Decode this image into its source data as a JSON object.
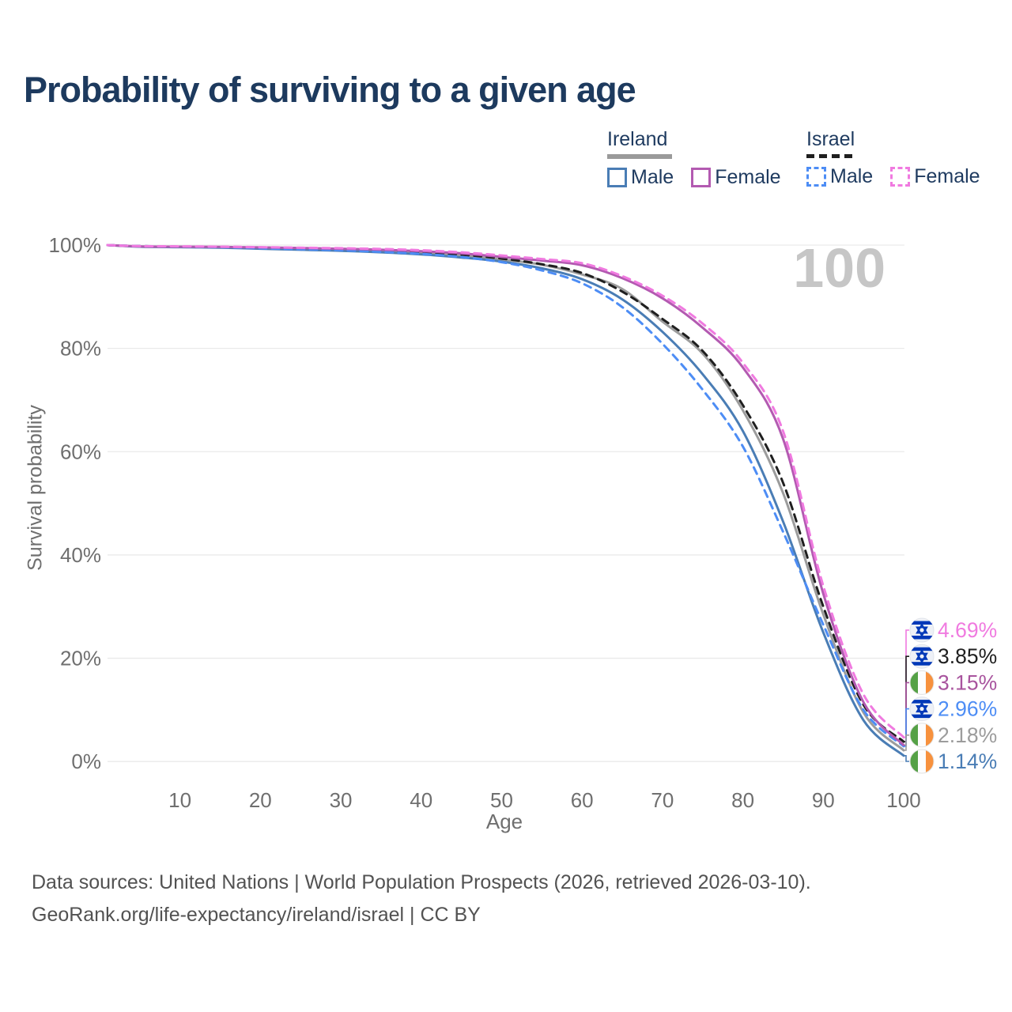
{
  "page": {
    "title": "Probability of surviving to a given age",
    "watermark_age": "100"
  },
  "legend": {
    "groups": [
      {
        "name": "Ireland",
        "line_style": "solid",
        "underline_color": "#9a9a9a",
        "items": [
          {
            "label": "Male",
            "color": "#4a7db5"
          },
          {
            "label": "Female",
            "color": "#b35ab1"
          }
        ]
      },
      {
        "name": "Israel",
        "line_style": "dashed",
        "underline_color": "#1f1f1f",
        "items": [
          {
            "label": "Male",
            "color": "#4d8df5"
          },
          {
            "label": "Female",
            "color": "#f07ae0"
          }
        ]
      }
    ]
  },
  "chart_data": {
    "type": "line",
    "title": "Probability of surviving to a given age",
    "xlabel": "Age",
    "ylabel": "Survival probability",
    "xlim": [
      0,
      100
    ],
    "ylim": [
      0,
      100
    ],
    "x_ticks": [
      10,
      20,
      30,
      40,
      50,
      60,
      70,
      80,
      90,
      100
    ],
    "y_ticks": [
      0,
      20,
      40,
      60,
      80,
      100
    ],
    "y_tick_suffix": "%",
    "grid": "horizontal-only",
    "legend_position": "top-right",
    "ages": [
      0,
      5,
      10,
      15,
      20,
      25,
      30,
      35,
      40,
      45,
      50,
      55,
      60,
      65,
      70,
      75,
      80,
      85,
      90,
      95,
      100
    ],
    "series": [
      {
        "id": "ireland-total",
        "name": "Ireland (both sexes)",
        "country": "Ireland",
        "sex": "total",
        "style": "solid",
        "color": "#9c9c9c",
        "values": [
          100,
          99.7,
          99.65,
          99.6,
          99.4,
          99.3,
          99.1,
          98.8,
          98.5,
          98.0,
          97.2,
          96.2,
          94.3,
          91.5,
          85.2,
          79.0,
          68.0,
          52.0,
          28.5,
          9.5,
          2.18
        ]
      },
      {
        "id": "israel-total",
        "name": "Israel (both sexes)",
        "country": "Israel",
        "sex": "total",
        "style": "dashed",
        "color": "#1f1f1f",
        "values": [
          100,
          99.8,
          99.7,
          99.65,
          99.5,
          99.35,
          99.2,
          99.0,
          98.65,
          98.15,
          97.4,
          96.3,
          94.6,
          91.0,
          85.7,
          79.5,
          69.0,
          54.0,
          30.0,
          11.0,
          3.85
        ]
      },
      {
        "id": "ireland-male",
        "name": "Ireland Male",
        "country": "Ireland",
        "sex": "male",
        "style": "solid",
        "color": "#4a7db5",
        "values": [
          100,
          99.7,
          99.6,
          99.5,
          99.3,
          99.1,
          98.9,
          98.6,
          98.2,
          97.6,
          96.8,
          95.5,
          93.4,
          89.5,
          83.2,
          75.0,
          64.0,
          46.5,
          25.0,
          8.0,
          1.14
        ]
      },
      {
        "id": "israel-male",
        "name": "Israel Male",
        "country": "Israel",
        "sex": "male",
        "style": "dashed",
        "color": "#4d8df5",
        "values": [
          100,
          99.8,
          99.7,
          99.6,
          99.4,
          99.2,
          99.0,
          98.7,
          98.3,
          97.7,
          96.7,
          95.1,
          92.6,
          88.0,
          80.9,
          72.0,
          61.0,
          44.5,
          26.5,
          10.0,
          2.96
        ]
      },
      {
        "id": "ireland-female",
        "name": "Ireland Female",
        "country": "Ireland",
        "sex": "female",
        "style": "solid",
        "color": "#b35ab1",
        "values": [
          100,
          99.75,
          99.7,
          99.65,
          99.55,
          99.45,
          99.3,
          99.1,
          98.8,
          98.4,
          97.7,
          97.0,
          96.1,
          93.6,
          89.7,
          84.0,
          76.3,
          62.5,
          32.5,
          11.5,
          3.15
        ]
      },
      {
        "id": "israel-female",
        "name": "Israel Female",
        "country": "Israel",
        "sex": "female",
        "style": "dashed",
        "color": "#f07ae0",
        "values": [
          100,
          99.8,
          99.75,
          99.7,
          99.6,
          99.5,
          99.4,
          99.25,
          99.0,
          98.6,
          98.0,
          97.3,
          96.5,
          94.0,
          90.2,
          84.8,
          77.2,
          64.0,
          34.0,
          13.0,
          4.69
        ]
      }
    ],
    "end_labels": [
      {
        "text": "4.69%",
        "value": 4.69,
        "flag": "israel",
        "series": "israel-female",
        "color": "#f07ae0"
      },
      {
        "text": "3.85%",
        "value": 3.85,
        "flag": "israel",
        "series": "israel-total",
        "color": "#1f1f1f"
      },
      {
        "text": "3.15%",
        "value": 3.15,
        "flag": "ireland",
        "series": "ireland-female",
        "color": "#a8549e"
      },
      {
        "text": "2.96%",
        "value": 2.96,
        "flag": "israel",
        "series": "israel-male",
        "color": "#4d8df5"
      },
      {
        "text": "2.18%",
        "value": 2.18,
        "flag": "ireland",
        "series": "ireland-total",
        "color": "#9c9c9c"
      },
      {
        "text": "1.14%",
        "value": 1.14,
        "flag": "ireland",
        "series": "ireland-male",
        "color": "#4a7db5"
      }
    ]
  },
  "footer": {
    "line1": "Data sources: United Nations | World Population Prospects (2026, retrieved 2026-03-10).",
    "line2": "GeoRank.org/life-expectancy/ireland/israel | CC BY"
  }
}
